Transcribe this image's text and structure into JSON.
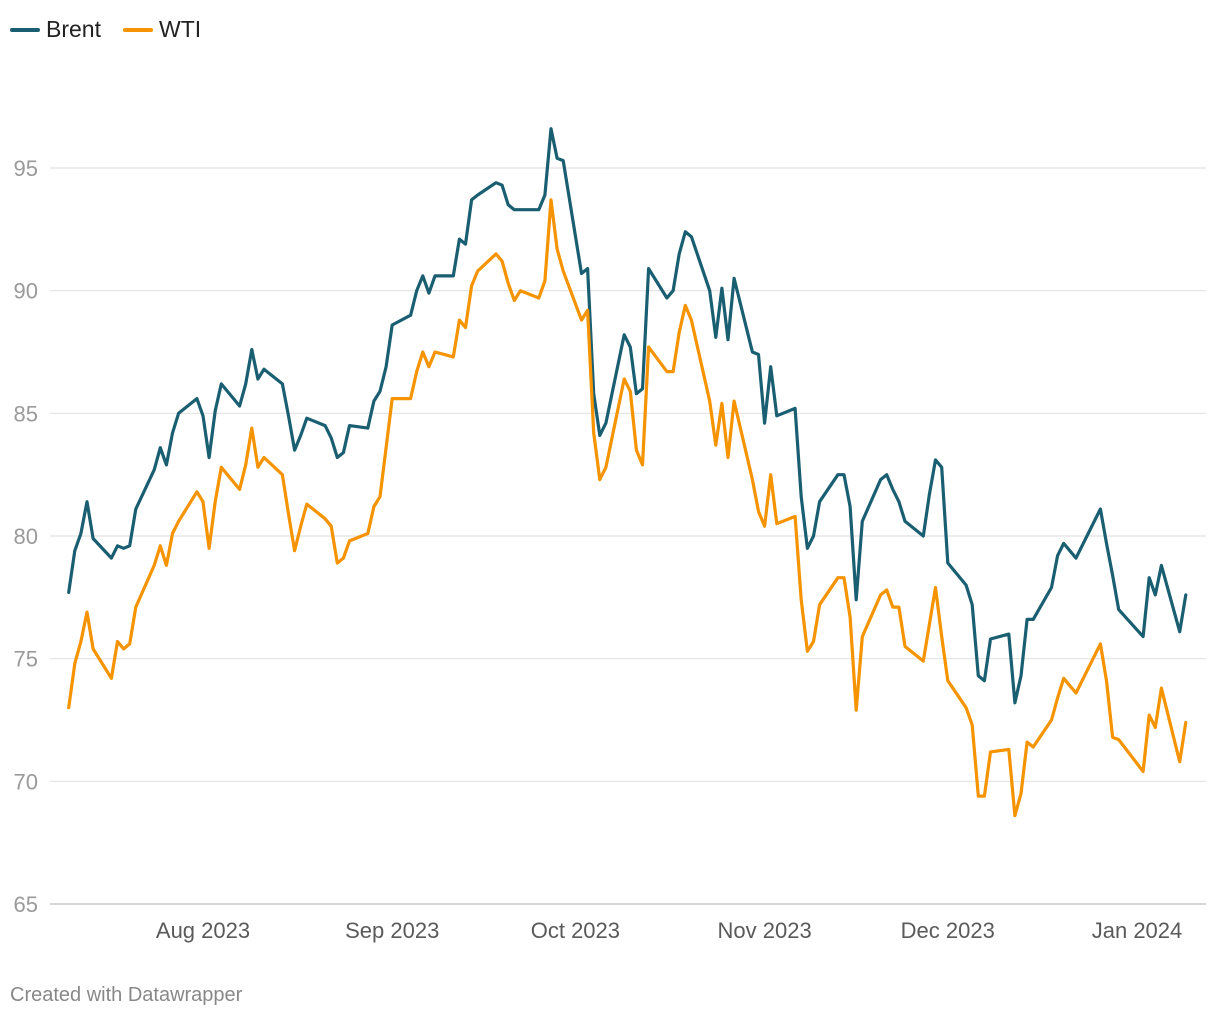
{
  "chart_data": {
    "type": "line",
    "title": "",
    "xlabel": "",
    "ylabel": "",
    "ylim": [
      65,
      97
    ],
    "y_ticks": [
      65,
      70,
      75,
      80,
      85,
      90,
      95
    ],
    "x_ticks": [
      {
        "label": "Aug 2023",
        "date": "2023-08-01"
      },
      {
        "label": "Sep 2023",
        "date": "2023-09-01"
      },
      {
        "label": "Oct 2023",
        "date": "2023-10-01"
      },
      {
        "label": "Nov 2023",
        "date": "2023-11-01"
      },
      {
        "label": "Dec 2023",
        "date": "2023-12-01"
      },
      {
        "label": "Jan 2024",
        "date": "2024-01-01"
      }
    ],
    "grid": true,
    "legend_position": "top-left",
    "series": [
      {
        "name": "Brent",
        "color": "#1a5e72",
        "points": [
          [
            "2023-07-10",
            77.7
          ],
          [
            "2023-07-11",
            79.4
          ],
          [
            "2023-07-12",
            80.1
          ],
          [
            "2023-07-13",
            81.4
          ],
          [
            "2023-07-14",
            79.9
          ],
          [
            "2023-07-17",
            79.1
          ],
          [
            "2023-07-18",
            79.6
          ],
          [
            "2023-07-19",
            79.5
          ],
          [
            "2023-07-20",
            79.6
          ],
          [
            "2023-07-21",
            81.1
          ],
          [
            "2023-07-24",
            82.7
          ],
          [
            "2023-07-25",
            83.6
          ],
          [
            "2023-07-26",
            82.9
          ],
          [
            "2023-07-27",
            84.2
          ],
          [
            "2023-07-28",
            85.0
          ],
          [
            "2023-07-31",
            85.6
          ],
          [
            "2023-08-01",
            84.9
          ],
          [
            "2023-08-02",
            83.2
          ],
          [
            "2023-08-03",
            85.1
          ],
          [
            "2023-08-04",
            86.2
          ],
          [
            "2023-08-07",
            85.3
          ],
          [
            "2023-08-08",
            86.2
          ],
          [
            "2023-08-09",
            87.6
          ],
          [
            "2023-08-10",
            86.4
          ],
          [
            "2023-08-11",
            86.8
          ],
          [
            "2023-08-14",
            86.2
          ],
          [
            "2023-08-15",
            84.9
          ],
          [
            "2023-08-16",
            83.5
          ],
          [
            "2023-08-17",
            84.1
          ],
          [
            "2023-08-18",
            84.8
          ],
          [
            "2023-08-21",
            84.5
          ],
          [
            "2023-08-22",
            84.0
          ],
          [
            "2023-08-23",
            83.2
          ],
          [
            "2023-08-24",
            83.4
          ],
          [
            "2023-08-25",
            84.5
          ],
          [
            "2023-08-28",
            84.4
          ],
          [
            "2023-08-29",
            85.5
          ],
          [
            "2023-08-30",
            85.9
          ],
          [
            "2023-08-31",
            86.9
          ],
          [
            "2023-09-01",
            88.6
          ],
          [
            "2023-09-04",
            89.0
          ],
          [
            "2023-09-05",
            90.0
          ],
          [
            "2023-09-06",
            90.6
          ],
          [
            "2023-09-07",
            89.9
          ],
          [
            "2023-09-08",
            90.6
          ],
          [
            "2023-09-11",
            90.6
          ],
          [
            "2023-09-12",
            92.1
          ],
          [
            "2023-09-13",
            91.9
          ],
          [
            "2023-09-14",
            93.7
          ],
          [
            "2023-09-15",
            93.9
          ],
          [
            "2023-09-18",
            94.4
          ],
          [
            "2023-09-19",
            94.3
          ],
          [
            "2023-09-20",
            93.5
          ],
          [
            "2023-09-21",
            93.3
          ],
          [
            "2023-09-22",
            93.3
          ],
          [
            "2023-09-25",
            93.3
          ],
          [
            "2023-09-26",
            93.9
          ],
          [
            "2023-09-27",
            96.6
          ],
          [
            "2023-09-28",
            95.4
          ],
          [
            "2023-09-29",
            95.3
          ],
          [
            "2023-10-02",
            90.7
          ],
          [
            "2023-10-03",
            90.9
          ],
          [
            "2023-10-04",
            85.8
          ],
          [
            "2023-10-05",
            84.1
          ],
          [
            "2023-10-06",
            84.6
          ],
          [
            "2023-10-09",
            88.2
          ],
          [
            "2023-10-10",
            87.7
          ],
          [
            "2023-10-11",
            85.8
          ],
          [
            "2023-10-12",
            86.0
          ],
          [
            "2023-10-13",
            90.9
          ],
          [
            "2023-10-16",
            89.7
          ],
          [
            "2023-10-17",
            90.0
          ],
          [
            "2023-10-18",
            91.5
          ],
          [
            "2023-10-19",
            92.4
          ],
          [
            "2023-10-20",
            92.2
          ],
          [
            "2023-10-23",
            90.0
          ],
          [
            "2023-10-24",
            88.1
          ],
          [
            "2023-10-25",
            90.1
          ],
          [
            "2023-10-26",
            88.0
          ],
          [
            "2023-10-27",
            90.5
          ],
          [
            "2023-10-30",
            87.5
          ],
          [
            "2023-10-31",
            87.4
          ],
          [
            "2023-11-01",
            84.6
          ],
          [
            "2023-11-02",
            86.9
          ],
          [
            "2023-11-03",
            84.9
          ],
          [
            "2023-11-06",
            85.2
          ],
          [
            "2023-11-07",
            81.6
          ],
          [
            "2023-11-08",
            79.5
          ],
          [
            "2023-11-09",
            80.0
          ],
          [
            "2023-11-10",
            81.4
          ],
          [
            "2023-11-13",
            82.5
          ],
          [
            "2023-11-14",
            82.5
          ],
          [
            "2023-11-15",
            81.2
          ],
          [
            "2023-11-16",
            77.4
          ],
          [
            "2023-11-17",
            80.6
          ],
          [
            "2023-11-20",
            82.3
          ],
          [
            "2023-11-21",
            82.5
          ],
          [
            "2023-11-22",
            81.9
          ],
          [
            "2023-11-23",
            81.4
          ],
          [
            "2023-11-24",
            80.6
          ],
          [
            "2023-11-27",
            80.0
          ],
          [
            "2023-11-28",
            81.7
          ],
          [
            "2023-11-29",
            83.1
          ],
          [
            "2023-11-30",
            82.8
          ],
          [
            "2023-12-01",
            78.9
          ],
          [
            "2023-12-04",
            78.0
          ],
          [
            "2023-12-05",
            77.2
          ],
          [
            "2023-12-06",
            74.3
          ],
          [
            "2023-12-07",
            74.1
          ],
          [
            "2023-12-08",
            75.8
          ],
          [
            "2023-12-11",
            76.0
          ],
          [
            "2023-12-12",
            73.2
          ],
          [
            "2023-12-13",
            74.3
          ],
          [
            "2023-12-14",
            76.6
          ],
          [
            "2023-12-15",
            76.6
          ],
          [
            "2023-12-18",
            77.9
          ],
          [
            "2023-12-19",
            79.2
          ],
          [
            "2023-12-20",
            79.7
          ],
          [
            "2023-12-21",
            79.4
          ],
          [
            "2023-12-22",
            79.1
          ],
          [
            "2023-12-26",
            81.1
          ],
          [
            "2023-12-27",
            79.7
          ],
          [
            "2023-12-28",
            78.4
          ],
          [
            "2023-12-29",
            77.0
          ],
          [
            "2024-01-02",
            75.9
          ],
          [
            "2024-01-03",
            78.3
          ],
          [
            "2024-01-04",
            77.6
          ],
          [
            "2024-01-05",
            78.8
          ],
          [
            "2024-01-08",
            76.1
          ],
          [
            "2024-01-09",
            77.6
          ]
        ]
      },
      {
        "name": "WTI",
        "color": "#f59300",
        "points": [
          [
            "2023-07-10",
            73.0
          ],
          [
            "2023-07-11",
            74.8
          ],
          [
            "2023-07-12",
            75.7
          ],
          [
            "2023-07-13",
            76.9
          ],
          [
            "2023-07-14",
            75.4
          ],
          [
            "2023-07-17",
            74.2
          ],
          [
            "2023-07-18",
            75.7
          ],
          [
            "2023-07-19",
            75.4
          ],
          [
            "2023-07-20",
            75.6
          ],
          [
            "2023-07-21",
            77.1
          ],
          [
            "2023-07-24",
            78.8
          ],
          [
            "2023-07-25",
            79.6
          ],
          [
            "2023-07-26",
            78.8
          ],
          [
            "2023-07-27",
            80.1
          ],
          [
            "2023-07-28",
            80.6
          ],
          [
            "2023-07-31",
            81.8
          ],
          [
            "2023-08-01",
            81.4
          ],
          [
            "2023-08-02",
            79.5
          ],
          [
            "2023-08-03",
            81.4
          ],
          [
            "2023-08-04",
            82.8
          ],
          [
            "2023-08-07",
            81.9
          ],
          [
            "2023-08-08",
            82.9
          ],
          [
            "2023-08-09",
            84.4
          ],
          [
            "2023-08-10",
            82.8
          ],
          [
            "2023-08-11",
            83.2
          ],
          [
            "2023-08-14",
            82.5
          ],
          [
            "2023-08-15",
            80.9
          ],
          [
            "2023-08-16",
            79.4
          ],
          [
            "2023-08-17",
            80.4
          ],
          [
            "2023-08-18",
            81.3
          ],
          [
            "2023-08-21",
            80.7
          ],
          [
            "2023-08-22",
            80.4
          ],
          [
            "2023-08-23",
            78.9
          ],
          [
            "2023-08-24",
            79.1
          ],
          [
            "2023-08-25",
            79.8
          ],
          [
            "2023-08-28",
            80.1
          ],
          [
            "2023-08-29",
            81.2
          ],
          [
            "2023-08-30",
            81.6
          ],
          [
            "2023-08-31",
            83.6
          ],
          [
            "2023-09-01",
            85.6
          ],
          [
            "2023-09-04",
            85.6
          ],
          [
            "2023-09-05",
            86.7
          ],
          [
            "2023-09-06",
            87.5
          ],
          [
            "2023-09-07",
            86.9
          ],
          [
            "2023-09-08",
            87.5
          ],
          [
            "2023-09-11",
            87.3
          ],
          [
            "2023-09-12",
            88.8
          ],
          [
            "2023-09-13",
            88.5
          ],
          [
            "2023-09-14",
            90.2
          ],
          [
            "2023-09-15",
            90.8
          ],
          [
            "2023-09-18",
            91.5
          ],
          [
            "2023-09-19",
            91.2
          ],
          [
            "2023-09-20",
            90.3
          ],
          [
            "2023-09-21",
            89.6
          ],
          [
            "2023-09-22",
            90.0
          ],
          [
            "2023-09-25",
            89.7
          ],
          [
            "2023-09-26",
            90.4
          ],
          [
            "2023-09-27",
            93.7
          ],
          [
            "2023-09-28",
            91.7
          ],
          [
            "2023-09-29",
            90.8
          ],
          [
            "2023-10-02",
            88.8
          ],
          [
            "2023-10-03",
            89.2
          ],
          [
            "2023-10-04",
            84.2
          ],
          [
            "2023-10-05",
            82.3
          ],
          [
            "2023-10-06",
            82.8
          ],
          [
            "2023-10-09",
            86.4
          ],
          [
            "2023-10-10",
            85.9
          ],
          [
            "2023-10-11",
            83.5
          ],
          [
            "2023-10-12",
            82.9
          ],
          [
            "2023-10-13",
            87.7
          ],
          [
            "2023-10-16",
            86.7
          ],
          [
            "2023-10-17",
            86.7
          ],
          [
            "2023-10-18",
            88.3
          ],
          [
            "2023-10-19",
            89.4
          ],
          [
            "2023-10-20",
            88.8
          ],
          [
            "2023-10-23",
            85.5
          ],
          [
            "2023-10-24",
            83.7
          ],
          [
            "2023-10-25",
            85.4
          ],
          [
            "2023-10-26",
            83.2
          ],
          [
            "2023-10-27",
            85.5
          ],
          [
            "2023-10-30",
            82.3
          ],
          [
            "2023-10-31",
            81.0
          ],
          [
            "2023-11-01",
            80.4
          ],
          [
            "2023-11-02",
            82.5
          ],
          [
            "2023-11-03",
            80.5
          ],
          [
            "2023-11-06",
            80.8
          ],
          [
            "2023-11-07",
            77.4
          ],
          [
            "2023-11-08",
            75.3
          ],
          [
            "2023-11-09",
            75.7
          ],
          [
            "2023-11-10",
            77.2
          ],
          [
            "2023-11-13",
            78.3
          ],
          [
            "2023-11-14",
            78.3
          ],
          [
            "2023-11-15",
            76.7
          ],
          [
            "2023-11-16",
            72.9
          ],
          [
            "2023-11-17",
            75.9
          ],
          [
            "2023-11-20",
            77.6
          ],
          [
            "2023-11-21",
            77.8
          ],
          [
            "2023-11-22",
            77.1
          ],
          [
            "2023-11-23",
            77.1
          ],
          [
            "2023-11-24",
            75.5
          ],
          [
            "2023-11-27",
            74.9
          ],
          [
            "2023-11-28",
            76.4
          ],
          [
            "2023-11-29",
            77.9
          ],
          [
            "2023-11-30",
            75.9
          ],
          [
            "2023-12-01",
            74.1
          ],
          [
            "2023-12-04",
            73.0
          ],
          [
            "2023-12-05",
            72.3
          ],
          [
            "2023-12-06",
            69.4
          ],
          [
            "2023-12-07",
            69.4
          ],
          [
            "2023-12-08",
            71.2
          ],
          [
            "2023-12-11",
            71.3
          ],
          [
            "2023-12-12",
            68.6
          ],
          [
            "2023-12-13",
            69.5
          ],
          [
            "2023-12-14",
            71.6
          ],
          [
            "2023-12-15",
            71.4
          ],
          [
            "2023-12-18",
            72.5
          ],
          [
            "2023-12-19",
            73.4
          ],
          [
            "2023-12-20",
            74.2
          ],
          [
            "2023-12-21",
            73.9
          ],
          [
            "2023-12-22",
            73.6
          ],
          [
            "2023-12-26",
            75.6
          ],
          [
            "2023-12-27",
            74.1
          ],
          [
            "2023-12-28",
            71.8
          ],
          [
            "2023-12-29",
            71.7
          ],
          [
            "2024-01-02",
            70.4
          ],
          [
            "2024-01-03",
            72.7
          ],
          [
            "2024-01-04",
            72.2
          ],
          [
            "2024-01-05",
            73.8
          ],
          [
            "2024-01-08",
            70.8
          ],
          [
            "2024-01-09",
            72.4
          ]
        ]
      }
    ]
  },
  "legend": [
    {
      "label": "Brent",
      "color": "#1a5e72"
    },
    {
      "label": "WTI",
      "color": "#f59300"
    }
  ],
  "footer": {
    "credit": "Created with Datawrapper"
  }
}
